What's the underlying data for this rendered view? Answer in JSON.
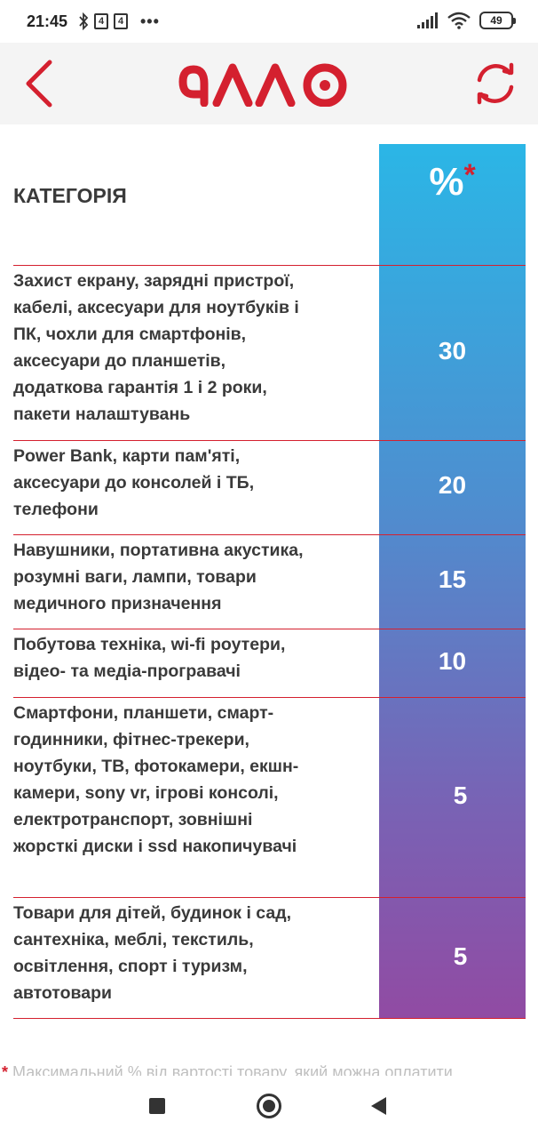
{
  "status_bar": {
    "time": "21:45",
    "battery": "49",
    "icons": [
      "bluetooth-icon",
      "sim-icon",
      "sim-icon",
      "more-dots-icon",
      "signal-icon",
      "wifi-icon",
      "battery-icon"
    ],
    "sim1": "4",
    "sim2": "4",
    "dots": "•••"
  },
  "header": {
    "logo_text": "алло",
    "brand_color": "#d4202f"
  },
  "table": {
    "category_header": "КАТЕГОРІЯ",
    "percent_header": "%",
    "percent_star": "*",
    "rows": [
      {
        "category": "Захист екрану, зарядні пристрої, кабелі, аксесуари для ноутбуків і ПК, чохли для смартфонів, аксесуари до планшетів, додаткова гарантія 1 і 2 роки, пакети налаштувань",
        "percent": "30"
      },
      {
        "category": "Power Bank, карти пам'яті, аксесуари до консолей і ТБ, телефони",
        "percent": "20"
      },
      {
        "category": "Навушники, портативна акустика, розумні ваги, лампи, товари медичного призначення",
        "percent": "15"
      },
      {
        "category": "Побутова техніка, wi-fi роутери, відео- та медіа-програвачі",
        "percent": "10"
      },
      {
        "category": "Смартфони, планшети, смарт-годинники, фітнес-трекери, ноутбуки, ТВ, фотокамери, екшн-камери, sony vr, ігрові консолі, електротранспорт, зовнішні жорсткі диски і ssd накопичувачі",
        "percent": "5"
      },
      {
        "category": "Товари для дітей, будинок і сад, сантехніка, меблі, текстиль, освітлення, спорт і туризм, автотовари",
        "percent": "5"
      }
    ]
  },
  "footnote": {
    "star": "*",
    "text": "Максимальний % від вартості товару, який можна оплатити"
  }
}
